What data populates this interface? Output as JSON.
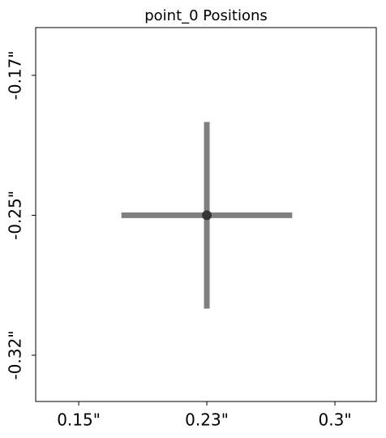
{
  "chart_data": {
    "type": "scatter",
    "title": "point_0 Positions",
    "x": [
      0.225
    ],
    "y": [
      -0.25
    ],
    "xerr": [
      0.05
    ],
    "yerr": [
      0.05
    ],
    "color": "#808080",
    "marker_color": "#222222",
    "xlim": [
      0.1248,
      0.3242
    ],
    "ylim": [
      -0.3498,
      -0.1494
    ],
    "xticks": [
      {
        "value": 0.15,
        "label": "0.15\""
      },
      {
        "value": 0.225,
        "label": "0.23\""
      },
      {
        "value": 0.3,
        "label": "0.3\""
      }
    ],
    "yticks": [
      {
        "value": -0.175,
        "label": "-0.17\""
      },
      {
        "value": -0.25,
        "label": "-0.25\""
      },
      {
        "value": -0.325,
        "label": "-0.32\""
      }
    ],
    "grid": false
  }
}
